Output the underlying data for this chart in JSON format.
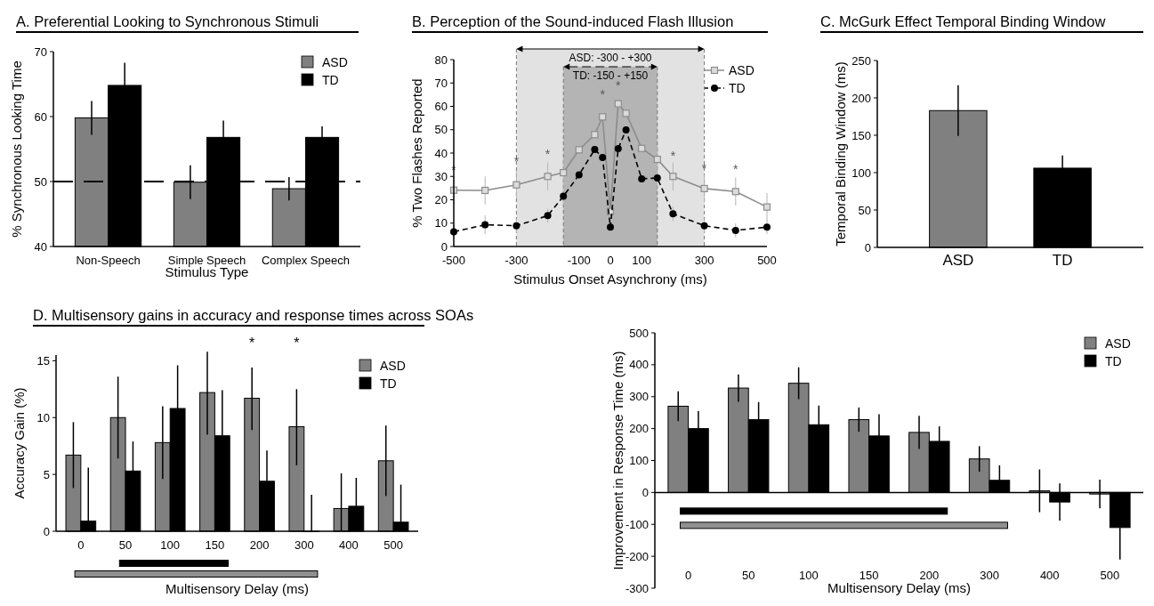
{
  "chart_data": [
    {
      "type": "bar",
      "title": "A. Preferential Looking to Synchronous Stimuli",
      "xlabel": "Stimulus Type",
      "ylabel": "% Synchronous Looking Time",
      "categories": [
        "Non-Speech",
        "Simple Speech",
        "Complex Speech"
      ],
      "series": [
        {
          "name": "ASD",
          "color": "#808080",
          "values": [
            59.8,
            49.9,
            48.9
          ],
          "errors": [
            2.6,
            2.6,
            1.8
          ]
        },
        {
          "name": "TD",
          "color": "#000000",
          "values": [
            64.8,
            56.8,
            56.8
          ],
          "errors": [
            3.5,
            2.6,
            1.7
          ]
        }
      ],
      "ylim": [
        40,
        70
      ],
      "yticks": [
        40,
        50,
        60,
        70
      ],
      "ref_lines": [
        {
          "axis": "y",
          "value": 50,
          "line_style": "dashed",
          "color": "#000000"
        }
      ],
      "legend": "top right"
    },
    {
      "type": "line",
      "title": "B. Perception of the Sound-induced Flash Illusion",
      "xlabel": "Stimulus Onset Asynchrony (ms)",
      "ylabel": "% Two Flashes Reported",
      "x": [
        -500,
        -400,
        -300,
        -200,
        -150,
        -100,
        -50,
        -25,
        0,
        25,
        50,
        100,
        150,
        200,
        300,
        400,
        500
      ],
      "series": [
        {
          "name": "ASD",
          "color": "#8c8c8c",
          "marker": "square",
          "line_style": "solid",
          "values": [
            24.1,
            24,
            26.4,
            30,
            31.6,
            41.4,
            47.9,
            55.5,
            15,
            61.1,
            57,
            42,
            37.3,
            30,
            24.8,
            23.5,
            16.9
          ],
          "errors": [
            6,
            6,
            6,
            6,
            6,
            6,
            6,
            6,
            6,
            6,
            6,
            6,
            6,
            6,
            6,
            6,
            6
          ]
        },
        {
          "name": "TD",
          "color": "#000000",
          "marker": "circle",
          "line_style": "dashed",
          "values": [
            6.3,
            9.3,
            8.9,
            13.2,
            21.5,
            30.7,
            41.5,
            38.1,
            8.3,
            41.9,
            49.9,
            29,
            29.3,
            14,
            8.9,
            6.9,
            8.3
          ],
          "errors": [
            3,
            4,
            3,
            3,
            4,
            5,
            5,
            5,
            3,
            5,
            5,
            4,
            4,
            3,
            3,
            3,
            3
          ]
        }
      ],
      "xlim": [
        -500,
        500
      ],
      "xticks": [
        -500,
        -300,
        -100,
        0,
        100,
        300,
        500
      ],
      "ylim": [
        0,
        80
      ],
      "yticks": [
        0,
        10,
        20,
        30,
        40,
        50,
        60,
        70,
        80
      ],
      "bands": [
        {
          "axis": "x",
          "from": -300,
          "to": 300,
          "label": "ASD: -300 - +300",
          "color": "#e2e2e2"
        },
        {
          "axis": "x",
          "from": -150,
          "to": 150,
          "label": "TD: -150 - +150",
          "color": "#b4b4b4"
        }
      ],
      "annotations": [
        "*",
        "*",
        "*",
        "*",
        "*",
        "*",
        "*",
        "*"
      ],
      "legend": "top right"
    },
    {
      "type": "bar",
      "title": "C. McGurk Effect Temporal Binding Window",
      "ylabel": "Temporal Binding Window (ms)",
      "categories": [
        "ASD",
        "TD"
      ],
      "values": [
        183,
        106
      ],
      "colors": [
        "#808080",
        "#000000"
      ],
      "errors": [
        34,
        17
      ],
      "ylim": [
        0,
        250
      ],
      "yticks": [
        0,
        50,
        100,
        150,
        200,
        250
      ]
    },
    {
      "type": "bar",
      "title": "D. Multisensory gains in accuracy and response times across SOAs",
      "xlabel": "Multisensory Delay (ms)",
      "ylabel": "Accuracy Gain (%)",
      "categories": [
        "0",
        "50",
        "100",
        "150",
        "200",
        "300",
        "400",
        "500"
      ],
      "series": [
        {
          "name": "ASD",
          "color": "#808080",
          "values": [
            6.7,
            10,
            7.8,
            12.2,
            11.7,
            9.2,
            2,
            6.2
          ],
          "errors": [
            [
              3.8,
              9.6
            ],
            [
              6.4,
              13.6
            ],
            [
              4.6,
              11
            ],
            [
              8.5,
              15.8
            ],
            [
              8.9,
              14.4
            ],
            [
              5.8,
              12.5
            ],
            [
              0,
              5.1
            ],
            [
              3.1,
              9.3
            ]
          ]
        },
        {
          "name": "TD",
          "color": "#000000",
          "values": [
            0.9,
            5.3,
            10.8,
            8.4,
            4.4,
            0,
            2.2,
            0.8
          ],
          "errors": [
            [
              0.9,
              5.6
            ],
            [
              5.3,
              7.9
            ],
            [
              10.8,
              14.6
            ],
            [
              8.4,
              12.4
            ],
            [
              4.4,
              7.1
            ],
            [
              0,
              3.2
            ],
            [
              2.2,
              4.7
            ],
            [
              0.8,
              4.1
            ]
          ]
        }
      ],
      "ylim": [
        0,
        15.5
      ],
      "yticks": [
        0,
        5,
        10,
        15
      ],
      "annotations": [
        "*",
        "*"
      ],
      "legend": "top right"
    },
    {
      "type": "bar",
      "xlabel": "Multisensory Delay (ms)",
      "ylabel": "Improvement in Response Time (ms)",
      "categories": [
        "0",
        "50",
        "100",
        "150",
        "200",
        "300",
        "400",
        "500"
      ],
      "series": [
        {
          "name": "ASD",
          "color": "#808080",
          "values": [
            270,
            327,
            342,
            228,
            188,
            105,
            5,
            -5
          ],
          "errors": [
            47,
            43,
            50,
            38,
            52,
            40,
            67,
            45
          ]
        },
        {
          "name": "TD",
          "color": "#000000",
          "values": [
            200,
            228,
            212,
            177,
            160,
            38,
            -30,
            -110
          ],
          "errors": [
            [
              200,
              255
            ],
            [
              228,
              283
            ],
            [
              212,
              272
            ],
            [
              177,
              245
            ],
            [
              160,
              207
            ],
            [
              38,
              85
            ],
            [
              -88,
              28
            ],
            [
              -210,
              -110
            ]
          ]
        }
      ],
      "ylim": [
        -300,
        500
      ],
      "yticks": [
        -300,
        -200,
        -100,
        0,
        100,
        200,
        300,
        400,
        500
      ],
      "legend": "top right"
    }
  ]
}
